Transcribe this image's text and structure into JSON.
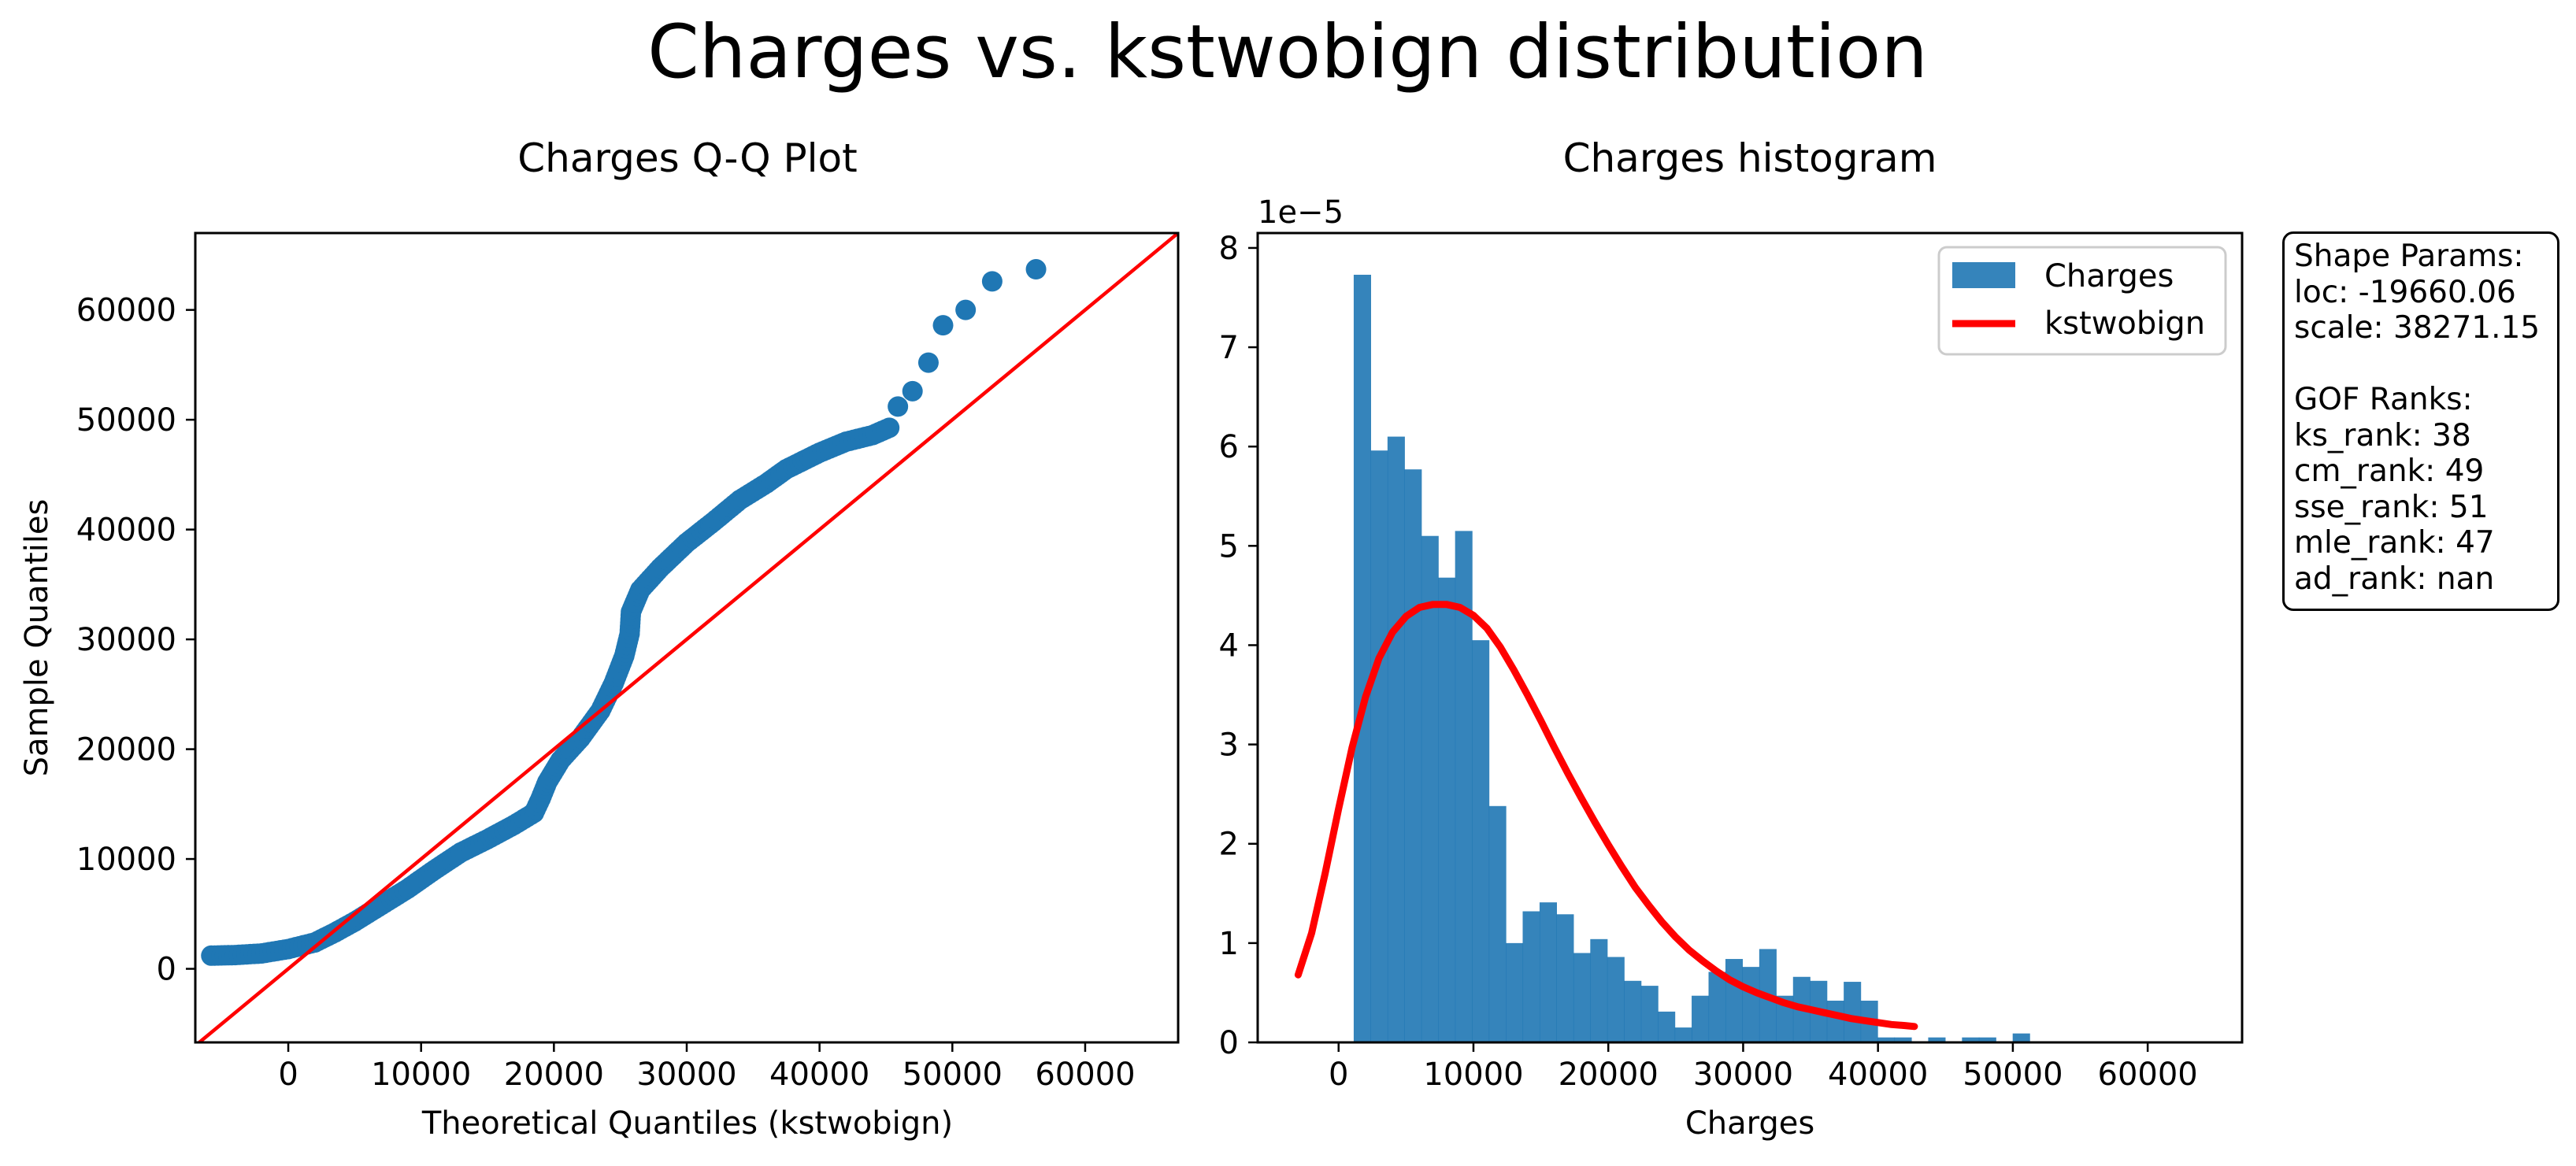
{
  "figure": {
    "title": "Charges vs. kstwobign distribution"
  },
  "colors": {
    "points": "#1f77b4",
    "bars": "#1f77b4",
    "fit_line": "#ff0000",
    "axes": "#000000"
  },
  "info_box": {
    "lines": [
      "Shape Params:",
      "loc: -19660.06",
      "scale: 38271.15",
      "",
      "GOF Ranks:",
      "ks_rank: 38",
      "cm_rank: 49",
      "sse_rank: 51",
      "mle_rank: 47",
      "ad_rank: nan"
    ]
  },
  "chart_data": [
    {
      "type": "scatter",
      "title": "Charges Q-Q Plot",
      "xlabel": "Theoretical Quantiles (kstwobign)",
      "ylabel": "Sample Quantiles",
      "xlim": [
        -7000,
        67000
      ],
      "ylim": [
        -6700,
        67000
      ],
      "xticks": [
        0,
        10000,
        20000,
        30000,
        40000,
        50000,
        60000
      ],
      "yticks": [
        0,
        10000,
        20000,
        30000,
        40000,
        50000,
        60000
      ],
      "xtick_labels": [
        "0",
        "10000",
        "20000",
        "30000",
        "40000",
        "50000",
        "60000"
      ],
      "ytick_labels": [
        "0",
        "10000",
        "20000",
        "30000",
        "40000",
        "50000",
        "60000"
      ],
      "reference_line": {
        "label": "y = x",
        "x": [
          -7000,
          67000
        ],
        "y": [
          -7000,
          67000
        ]
      },
      "points_curve": [
        [
          -5800,
          1200
        ],
        [
          -4000,
          1250
        ],
        [
          -2000,
          1400
        ],
        [
          0,
          1800
        ],
        [
          2000,
          2400
        ],
        [
          3500,
          3300
        ],
        [
          5000,
          4300
        ],
        [
          7000,
          5800
        ],
        [
          9000,
          7300
        ],
        [
          11000,
          9000
        ],
        [
          13000,
          10600
        ],
        [
          15000,
          11800
        ],
        [
          17000,
          13100
        ],
        [
          18500,
          14200
        ],
        [
          19000,
          15500
        ],
        [
          19500,
          17000
        ],
        [
          20500,
          19000
        ],
        [
          22000,
          21000
        ],
        [
          23500,
          23500
        ],
        [
          24500,
          26000
        ],
        [
          25300,
          28500
        ],
        [
          25700,
          30500
        ],
        [
          25800,
          32500
        ],
        [
          26500,
          34500
        ],
        [
          28000,
          36500
        ],
        [
          30000,
          38800
        ],
        [
          32000,
          40700
        ],
        [
          34000,
          42700
        ],
        [
          36000,
          44200
        ],
        [
          37500,
          45500
        ],
        [
          40000,
          47000
        ],
        [
          42000,
          48000
        ],
        [
          44000,
          48600
        ],
        [
          45500,
          49400
        ]
      ],
      "outlier_points": [
        [
          45900,
          51200
        ],
        [
          47000,
          52600
        ],
        [
          48200,
          55200
        ],
        [
          49300,
          58600
        ],
        [
          51000,
          60000
        ],
        [
          53000,
          62600
        ],
        [
          56300,
          63700
        ]
      ]
    },
    {
      "type": "bar",
      "title": "Charges histogram",
      "xlabel": "Charges",
      "ylabel": "",
      "y_offset_label": "1e−5",
      "xlim": [
        -6000,
        67000
      ],
      "ylim": [
        0,
        8.15
      ],
      "y_scale": 1e-05,
      "xticks": [
        0,
        10000,
        20000,
        30000,
        40000,
        50000,
        60000
      ],
      "yticks": [
        0,
        1,
        2,
        3,
        4,
        5,
        6,
        7,
        8
      ],
      "xtick_labels": [
        "0",
        "10000",
        "20000",
        "30000",
        "40000",
        "50000",
        "60000"
      ],
      "ytick_labels": [
        "0",
        "1",
        "2",
        "3",
        "4",
        "5",
        "6",
        "7",
        "8"
      ],
      "bin_start": 1121,
      "bin_width": 1253,
      "values": [
        7.73,
        5.96,
        6.1,
        5.77,
        5.1,
        4.68,
        5.15,
        4.05,
        2.38,
        1.0,
        1.32,
        1.41,
        1.29,
        0.9,
        1.04,
        0.86,
        0.62,
        0.57,
        0.31,
        0.15,
        0.47,
        0.71,
        0.84,
        0.76,
        0.94,
        0.47,
        0.66,
        0.62,
        0.42,
        0.61,
        0.42,
        0.05,
        0.05,
        0,
        0.05,
        0,
        0.05,
        0.05,
        0,
        0.09
      ],
      "series": [
        {
          "name": "Charges",
          "kind": "histogram"
        },
        {
          "name": "kstwobign",
          "kind": "line"
        }
      ],
      "fit_curve": [
        [
          -3000,
          0.68
        ],
        [
          -2000,
          1.1
        ],
        [
          -1000,
          1.7
        ],
        [
          0,
          2.35
        ],
        [
          1000,
          2.97
        ],
        [
          2000,
          3.48
        ],
        [
          3000,
          3.87
        ],
        [
          4000,
          4.13
        ],
        [
          5000,
          4.29
        ],
        [
          6000,
          4.38
        ],
        [
          7000,
          4.41
        ],
        [
          8000,
          4.41
        ],
        [
          9000,
          4.38
        ],
        [
          10000,
          4.3
        ],
        [
          11000,
          4.17
        ],
        [
          12000,
          3.98
        ],
        [
          13000,
          3.75
        ],
        [
          14000,
          3.5
        ],
        [
          15000,
          3.24
        ],
        [
          16000,
          2.97
        ],
        [
          17000,
          2.71
        ],
        [
          18000,
          2.46
        ],
        [
          19000,
          2.22
        ],
        [
          20000,
          1.99
        ],
        [
          21000,
          1.77
        ],
        [
          22000,
          1.56
        ],
        [
          23000,
          1.38
        ],
        [
          24000,
          1.21
        ],
        [
          25000,
          1.06
        ],
        [
          26000,
          0.93
        ],
        [
          27000,
          0.82
        ],
        [
          28000,
          0.72
        ],
        [
          29000,
          0.63
        ],
        [
          30000,
          0.56
        ],
        [
          31000,
          0.5
        ],
        [
          32000,
          0.45
        ],
        [
          33000,
          0.4
        ],
        [
          34000,
          0.36
        ],
        [
          35000,
          0.33
        ],
        [
          36000,
          0.3
        ],
        [
          37000,
          0.27
        ],
        [
          38000,
          0.24
        ],
        [
          39000,
          0.22
        ],
        [
          40000,
          0.2
        ],
        [
          41000,
          0.18
        ],
        [
          42000,
          0.17
        ],
        [
          42700,
          0.16
        ]
      ],
      "legend_position": "top-right"
    }
  ]
}
